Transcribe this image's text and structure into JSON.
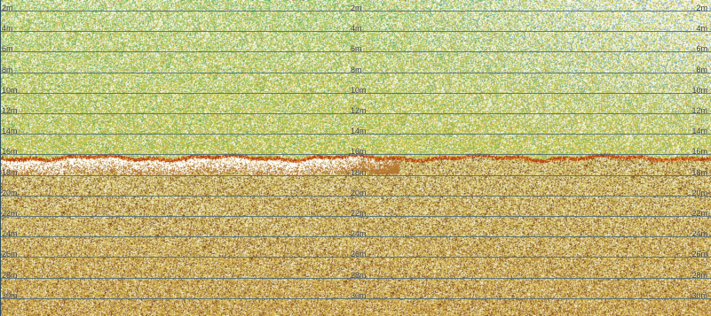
{
  "sonar": {
    "depth_marks": [
      "2m",
      "4m",
      "6m",
      "8m",
      "10m",
      "12m",
      "14m",
      "16m",
      "18m",
      "20m",
      "22m",
      "24m",
      "26m",
      "28m",
      "30m"
    ],
    "columns": [
      "left",
      "mid",
      "right"
    ],
    "colors": {
      "upper_water": "#c8dca0",
      "mid_water": "#d8dc88",
      "lower_water": "#d8cc88",
      "bottom_echo": "#a03010",
      "bottom_shadow": "#ffffff",
      "grid_line": "#4a6a78"
    }
  }
}
